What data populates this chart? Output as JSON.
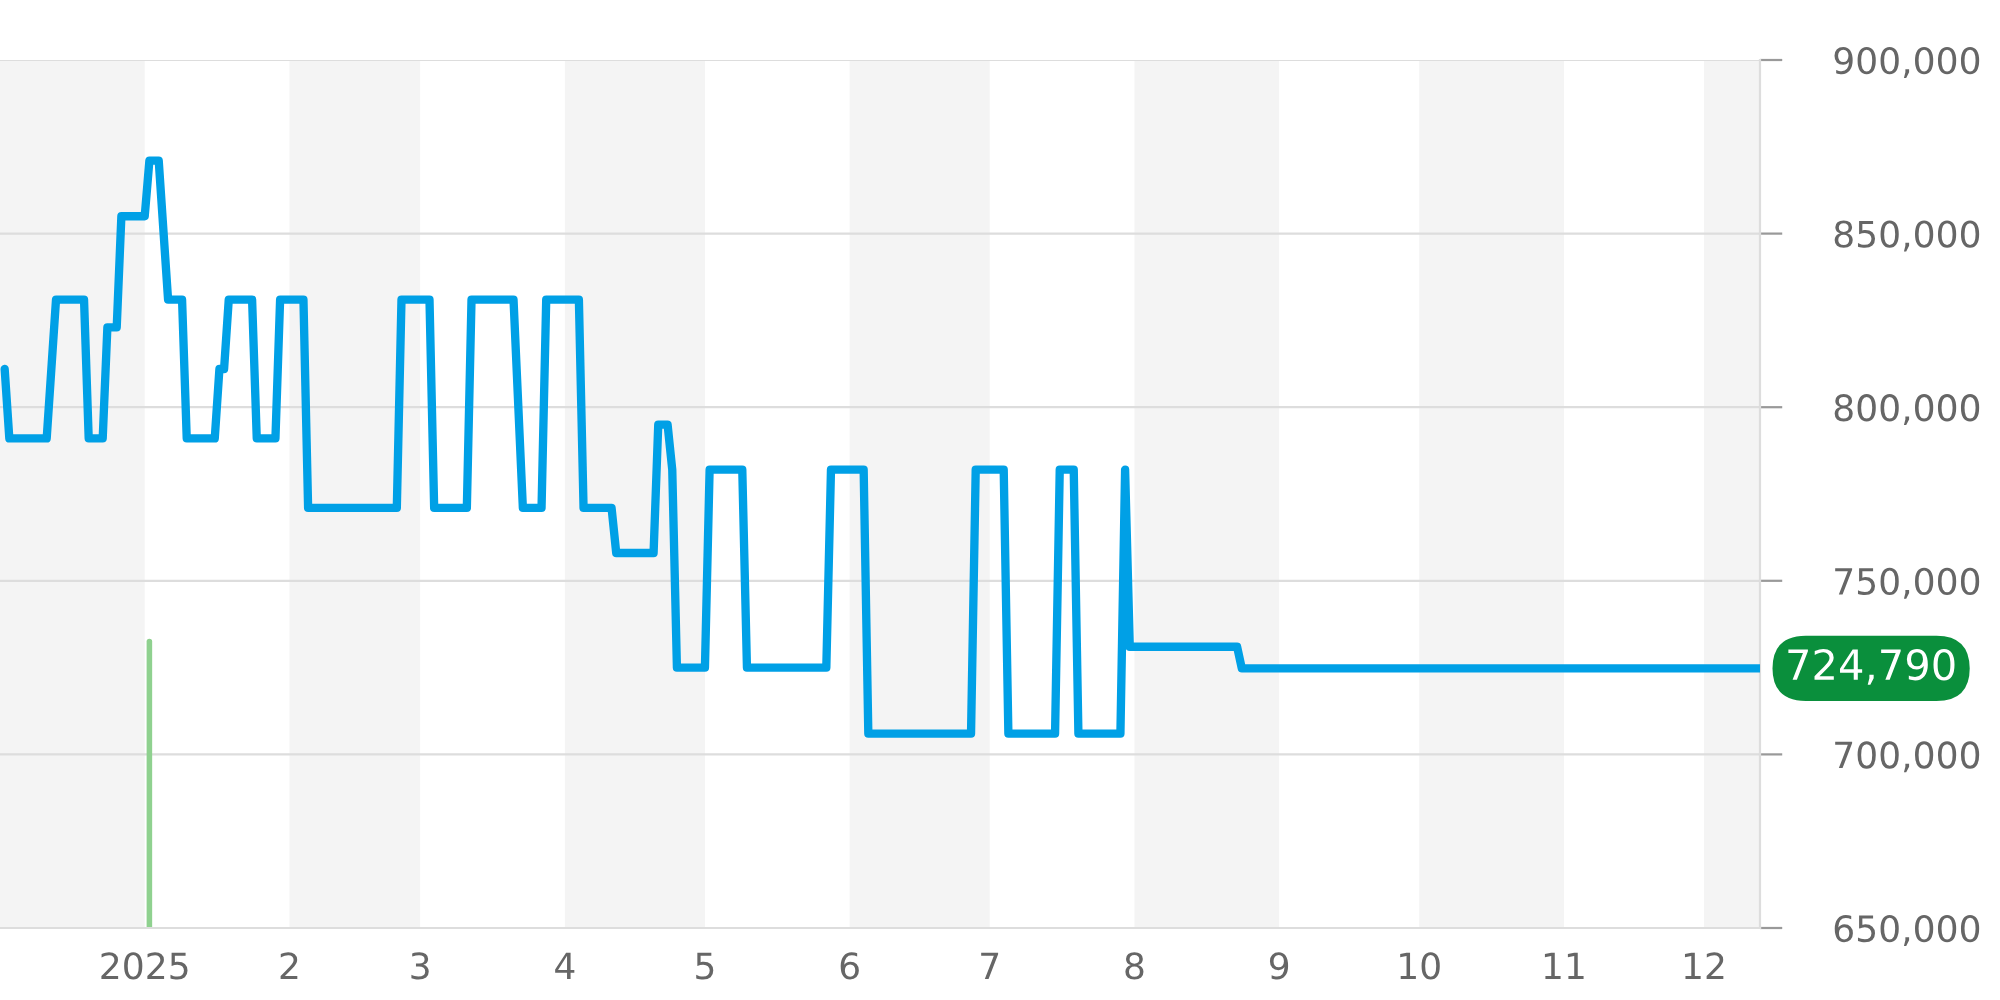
{
  "chart_data": {
    "type": "line",
    "x": [
      "2024-12-02",
      "2024-12-03",
      "2024-12-11",
      "2024-12-13",
      "2024-12-19",
      "2024-12-20",
      "2024-12-23",
      "2024-12-24",
      "2024-12-26",
      "2024-12-27",
      "2025-01-01",
      "2025-01-02",
      "2025-01-04",
      "2025-01-06",
      "2025-01-09",
      "2025-01-10",
      "2025-01-16",
      "2025-01-17",
      "2025-01-18",
      "2025-01-19",
      "2025-01-24",
      "2025-01-25",
      "2025-01-29",
      "2025-01-30",
      "2025-02-04",
      "2025-02-05",
      "2025-02-24",
      "2025-02-25",
      "2025-03-03",
      "2025-03-04",
      "2025-03-11",
      "2025-03-12",
      "2025-03-21",
      "2025-03-23",
      "2025-03-27",
      "2025-03-28",
      "2025-04-04",
      "2025-04-05",
      "2025-04-11",
      "2025-04-12",
      "2025-04-20",
      "2025-04-21",
      "2025-04-23",
      "2025-04-24",
      "2025-04-25",
      "2025-05-01",
      "2025-05-02",
      "2025-05-09",
      "2025-05-10",
      "2025-05-27",
      "2025-05-28",
      "2025-06-04",
      "2025-06-05",
      "2025-06-27",
      "2025-06-28",
      "2025-07-04",
      "2025-07-05",
      "2025-07-15",
      "2025-07-16",
      "2025-07-19",
      "2025-07-20",
      "2025-07-29",
      "2025-07-30",
      "2025-07-31",
      "2025-08-23",
      "2025-08-24",
      "2025-12-13"
    ],
    "series": [
      {
        "color": "#00a0e6",
        "values": [
          811000,
          791000,
          791000,
          831000,
          831000,
          791000,
          791000,
          823000,
          823000,
          855000,
          855000,
          871000,
          871000,
          831000,
          831000,
          791000,
          791000,
          811000,
          811000,
          831000,
          831000,
          791000,
          791000,
          831000,
          831000,
          771000,
          771000,
          831000,
          831000,
          771000,
          771000,
          831000,
          831000,
          771000,
          771000,
          831000,
          831000,
          771000,
          771000,
          758000,
          758000,
          795000,
          795000,
          782000,
          725000,
          725000,
          782000,
          782000,
          725000,
          725000,
          782000,
          782000,
          706000,
          706000,
          782000,
          782000,
          706000,
          706000,
          782000,
          782000,
          706000,
          706000,
          782000,
          731000,
          731000,
          724790,
          724790
        ]
      }
    ],
    "ref_lines": [
      {
        "axis": "x",
        "value": "2025-01-02",
        "color": "#8fd18f"
      }
    ],
    "xlim": [
      "2024-12-01",
      "2025-12-13"
    ],
    "xticks": [
      {
        "value": "2025-01-01",
        "label": "2025"
      },
      {
        "value": "2025-02-01",
        "label": "2"
      },
      {
        "value": "2025-03-01",
        "label": "3"
      },
      {
        "value": "2025-04-01",
        "label": "4"
      },
      {
        "value": "2025-05-01",
        "label": "5"
      },
      {
        "value": "2025-06-01",
        "label": "6"
      },
      {
        "value": "2025-07-01",
        "label": "7"
      },
      {
        "value": "2025-08-01",
        "label": "8"
      },
      {
        "value": "2025-09-01",
        "label": "9"
      },
      {
        "value": "2025-10-01",
        "label": "10"
      },
      {
        "value": "2025-11-01",
        "label": "11"
      },
      {
        "value": "2025-12-01",
        "label": "12"
      }
    ],
    "ylim": [
      650000,
      900000
    ],
    "yticks": [
      {
        "value": 650000,
        "label": "650,000"
      },
      {
        "value": 700000,
        "label": "700,000"
      },
      {
        "value": 750000,
        "label": "750,000"
      },
      {
        "value": 800000,
        "label": "800,000"
      },
      {
        "value": 850000,
        "label": "850,000"
      },
      {
        "value": 900000,
        "label": "900,000"
      }
    ],
    "grid": "y",
    "legend": false,
    "marker": "none",
    "line_style": "solid",
    "bands": [
      {
        "axis": "x",
        "from": "2024-12-01",
        "to": "2025-01-01",
        "color": "#f4f4f4"
      },
      {
        "axis": "x",
        "from": "2025-02-01",
        "to": "2025-03-01",
        "color": "#f4f4f4"
      },
      {
        "axis": "x",
        "from": "2025-04-01",
        "to": "2025-05-01",
        "color": "#f4f4f4"
      },
      {
        "axis": "x",
        "from": "2025-06-01",
        "to": "2025-07-01",
        "color": "#f4f4f4"
      },
      {
        "axis": "x",
        "from": "2025-08-01",
        "to": "2025-09-01",
        "color": "#f4f4f4"
      },
      {
        "axis": "x",
        "from": "2025-10-01",
        "to": "2025-11-01",
        "color": "#f4f4f4"
      },
      {
        "axis": "x",
        "from": "2025-12-01",
        "to": "2025-12-13",
        "color": "#f4f4f4"
      }
    ],
    "annotations": [
      {
        "text": "724,790",
        "x": "2025-12-13",
        "y": 724790
      }
    ]
  }
}
